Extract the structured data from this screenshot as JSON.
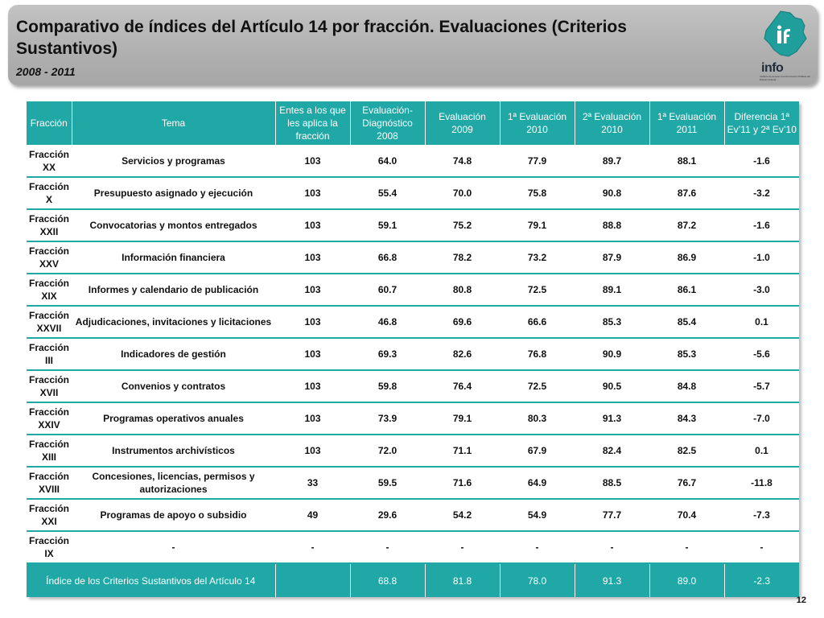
{
  "header": {
    "title": "Comparativo de índices del Artículo 14 por fracción. Evaluaciones (Criterios Sustantivos)",
    "subtitle": "2008 - 2011",
    "logo_word": "info",
    "logo_tagline": "Instituto de Acceso a la Información Pública del Distrito Federal"
  },
  "table": {
    "columns": [
      "Fracción",
      "Tema",
      "Entes a los que les aplica la fracción",
      "Evaluación-Diagnóstico 2008",
      "Evaluación 2009",
      "1ª Evaluación 2010",
      "2ª Evaluación 2010",
      "1ª Evaluación 2011",
      "Diferencia 1ª Ev’11 y 2ª Ev’10"
    ],
    "rows": [
      [
        "Fracción XX",
        "Servicios y programas",
        "103",
        "64.0",
        "74.8",
        "77.9",
        "89.7",
        "88.1",
        "-1.6"
      ],
      [
        "Fracción X",
        "Presupuesto asignado y ejecución",
        "103",
        "55.4",
        "70.0",
        "75.8",
        "90.8",
        "87.6",
        "-3.2"
      ],
      [
        "Fracción XXII",
        "Convocatorias y montos entregados",
        "103",
        "59.1",
        "75.2",
        "79.1",
        "88.8",
        "87.2",
        "-1.6"
      ],
      [
        "Fracción XXV",
        "Información financiera",
        "103",
        "66.8",
        "78.2",
        "73.2",
        "87.9",
        "86.9",
        "-1.0"
      ],
      [
        "Fracción XIX",
        "Informes y calendario de publicación",
        "103",
        "60.7",
        "80.8",
        "72.5",
        "89.1",
        "86.1",
        "-3.0"
      ],
      [
        "Fracción XXVII",
        "Adjudicaciones, invitaciones y licitaciones",
        "103",
        "46.8",
        "69.6",
        "66.6",
        "85.3",
        "85.4",
        "0.1"
      ],
      [
        "Fracción III",
        "Indicadores de gestión",
        "103",
        "69.3",
        "82.6",
        "76.8",
        "90.9",
        "85.3",
        "-5.6"
      ],
      [
        "Fracción XVII",
        "Convenios y contratos",
        "103",
        "59.8",
        "76.4",
        "72.5",
        "90.5",
        "84.8",
        "-5.7"
      ],
      [
        "Fracción XXIV",
        "Programas operativos anuales",
        "103",
        "73.9",
        "79.1",
        "80.3",
        "91.3",
        "84.3",
        "-7.0"
      ],
      [
        "Fracción XIII",
        "Instrumentos archivísticos",
        "103",
        "72.0",
        "71.1",
        "67.9",
        "82.4",
        "82.5",
        "0.1"
      ],
      [
        "Fracción XVIII",
        "Concesiones, licencias, permisos y autorizaciones",
        "33",
        "59.5",
        "71.6",
        "64.9",
        "88.5",
        "76.7",
        "-11.8"
      ],
      [
        "Fracción XXI",
        "Programas de apoyo o subsidio",
        "49",
        "29.6",
        "54.2",
        "54.9",
        "77.7",
        "70.4",
        "-7.3"
      ],
      [
        "Fracción IX",
        "-",
        "-",
        "-",
        "-",
        "-",
        "-",
        "-",
        "-"
      ]
    ],
    "footer": [
      "Índice de los Criterios Sustantivos del Artículo 14",
      "",
      "68.8",
      "81.8",
      "78.0",
      "91.3",
      "89.0",
      "-2.3"
    ]
  },
  "page_number": "12",
  "colors": {
    "accent": "#1fa8a5",
    "header_bg": "#b1b1b1"
  }
}
